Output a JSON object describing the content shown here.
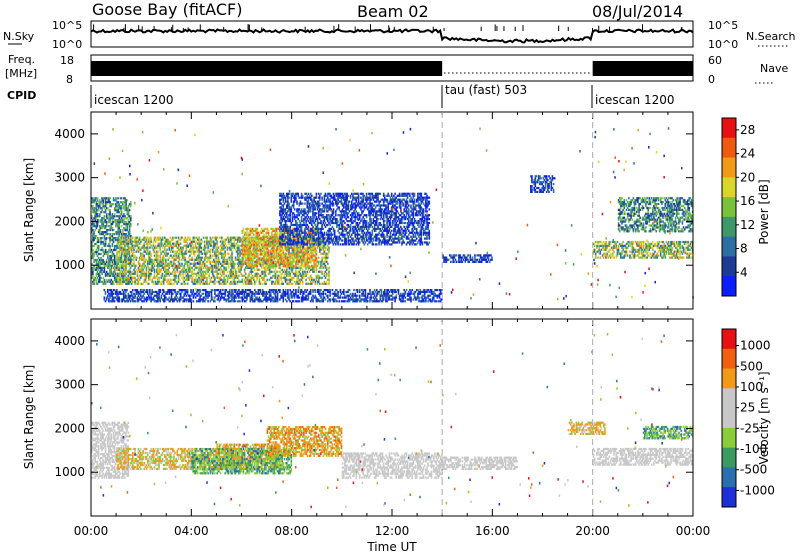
{
  "header": {
    "station": "Goose Bay (fitACF)",
    "beam": "Beam 02",
    "date": "08/Jul/2014"
  },
  "noise_panel": {
    "left_label": "N.Sky",
    "left_ticks": [
      "10^5",
      "10^0"
    ],
    "right_ticks": [
      "10^5",
      "10^0"
    ],
    "right_label": "N.Search"
  },
  "freq_panel": {
    "left_label_1": "Freq.",
    "left_label_2": "[MHz]",
    "left_ticks": [
      "18",
      "8"
    ],
    "right_ticks": [
      "60",
      "0"
    ],
    "right_label": "Nave"
  },
  "cpid_panel": {
    "label": "CPID",
    "segments": [
      {
        "name": "icescan 1200",
        "start_hour": 0,
        "end_hour": 14
      },
      {
        "name": "tau (fast) 503",
        "start_hour": 14,
        "end_hour": 20
      },
      {
        "name": "icescan 1200",
        "start_hour": 20,
        "end_hour": 24
      }
    ]
  },
  "x_axis": {
    "label": "Time UT",
    "ticks": [
      "00:00",
      "04:00",
      "08:00",
      "12:00",
      "16:00",
      "20:00",
      "00:00"
    ]
  },
  "colors": {
    "power": [
      "#0a1eff",
      "#1c3b94",
      "#2b6fa5",
      "#3d9a68",
      "#7ac23a",
      "#d8d62a",
      "#f09a18",
      "#f05a10",
      "#e81010"
    ],
    "velocity": [
      "#1e2ed8",
      "#2a6fb0",
      "#3a9a60",
      "#8acd3a",
      "#c8c8c8",
      "#c8c8c8",
      "#f09a18",
      "#f06010",
      "#e81010"
    ]
  },
  "chart_data": [
    {
      "type": "heatmap",
      "title": "",
      "ylabel": "Slant Range [km]",
      "xlabel": "",
      "x_range_hours": [
        0,
        24
      ],
      "ylim": [
        0,
        4500
      ],
      "yticks": [
        1000,
        2000,
        3000,
        4000
      ],
      "grid": false,
      "colorbar": {
        "label": "Power [dB]",
        "ticks": [
          "4",
          "8",
          "12",
          "16",
          "20",
          "24",
          "28"
        ],
        "range": [
          0,
          30
        ]
      },
      "vertical_markers_hours": [
        14,
        20
      ],
      "bands": [
        {
          "t0": 0.0,
          "t1": 1.6,
          "r0": 600,
          "r1": 2600,
          "level": "mid"
        },
        {
          "t0": 1.0,
          "t1": 9.5,
          "r0": 600,
          "r1": 1700,
          "level": "high"
        },
        {
          "t0": 6.0,
          "t1": 9.0,
          "r0": 1000,
          "r1": 1900,
          "level": "peak"
        },
        {
          "t0": 7.5,
          "t1": 13.5,
          "r0": 1500,
          "r1": 2700,
          "level": "low"
        },
        {
          "t0": 14.0,
          "t1": 16.0,
          "r0": 1100,
          "r1": 1300,
          "level": "low"
        },
        {
          "t0": 17.5,
          "t1": 18.5,
          "r0": 2700,
          "r1": 3100,
          "level": "low"
        },
        {
          "t0": 20.0,
          "t1": 24.0,
          "r0": 1200,
          "r1": 1600,
          "level": "high"
        },
        {
          "t0": 21.0,
          "t1": 24.0,
          "r0": 1800,
          "r1": 2600,
          "level": "mid"
        },
        {
          "t0": 0.5,
          "t1": 14.0,
          "r0": 200,
          "r1": 500,
          "level": "low"
        }
      ]
    },
    {
      "type": "heatmap",
      "title": "",
      "ylabel": "Slant Range [km]",
      "xlabel": "Time UT",
      "x_range_hours": [
        0,
        24
      ],
      "ylim": [
        0,
        4500
      ],
      "yticks": [
        1000,
        2000,
        3000,
        4000
      ],
      "grid": false,
      "colorbar": {
        "label": "Velocity [m s⁻¹]",
        "ticks": [
          "1000",
          "500",
          "100",
          "25",
          "-25",
          "-100",
          "-500",
          "-1000"
        ],
        "range": [
          -1200,
          1200
        ]
      },
      "vertical_markers_hours": [
        14,
        20
      ],
      "bands": [
        {
          "t0": 0.0,
          "t1": 1.5,
          "r0": 900,
          "r1": 2200,
          "level": "ground"
        },
        {
          "t0": 1.0,
          "t1": 6.0,
          "r0": 1100,
          "r1": 1600,
          "level": "neg"
        },
        {
          "t0": 5.0,
          "t1": 7.5,
          "r0": 1100,
          "r1": 1700,
          "level": "strong-neg"
        },
        {
          "t0": 4.0,
          "t1": 8.0,
          "r0": 1000,
          "r1": 1600,
          "level": "pos"
        },
        {
          "t0": 7.0,
          "t1": 10.0,
          "r0": 1400,
          "r1": 2100,
          "level": "strong-neg"
        },
        {
          "t0": 10.0,
          "t1": 14.0,
          "r0": 900,
          "r1": 1500,
          "level": "ground"
        },
        {
          "t0": 14.0,
          "t1": 17.0,
          "r0": 1100,
          "r1": 1400,
          "level": "ground"
        },
        {
          "t0": 19.0,
          "t1": 20.5,
          "r0": 1900,
          "r1": 2200,
          "level": "neg"
        },
        {
          "t0": 20.0,
          "t1": 24.0,
          "r0": 1200,
          "r1": 1600,
          "level": "ground"
        },
        {
          "t0": 22.0,
          "t1": 24.0,
          "r0": 1800,
          "r1": 2100,
          "level": "pos"
        }
      ]
    }
  ]
}
